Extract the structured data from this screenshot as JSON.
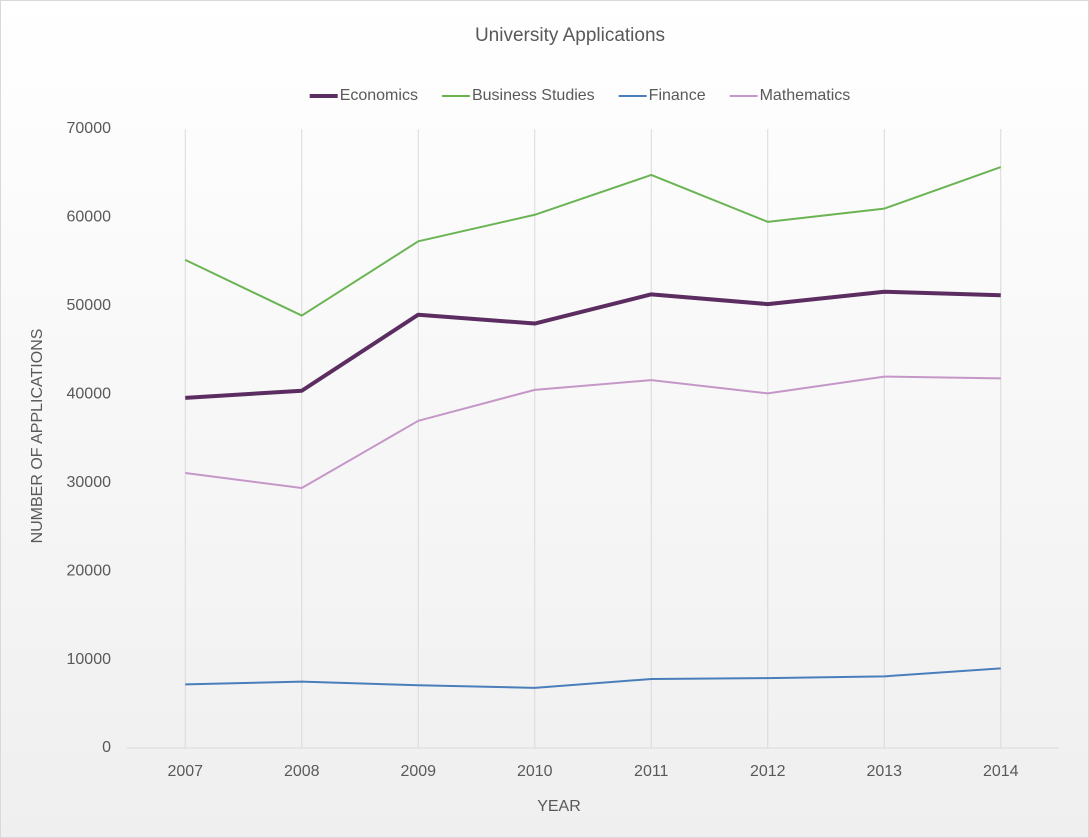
{
  "chart_data": {
    "type": "line",
    "title": "University Applications",
    "x_label": "YEAR",
    "y_label": "NUMBER OF APPLICATIONS",
    "categories": [
      "2007",
      "2008",
      "2009",
      "2010",
      "2011",
      "2012",
      "2013",
      "2014"
    ],
    "series": [
      {
        "name": "Economics",
        "color": "#5c2d61",
        "width": 4,
        "values": [
          39600,
          40400,
          49000,
          48000,
          51300,
          50200,
          51600,
          51200
        ]
      },
      {
        "name": "Business Studies",
        "color": "#6bb454",
        "width": 2,
        "values": [
          55200,
          48900,
          57300,
          60300,
          64800,
          59500,
          61000,
          65700
        ]
      },
      {
        "name": "Finance",
        "color": "#4a7ebb",
        "width": 2,
        "values": [
          7200,
          7500,
          7100,
          6800,
          7800,
          7900,
          8100,
          9000
        ]
      },
      {
        "name": "Mathematics",
        "color": "#c597c8",
        "width": 2,
        "values": [
          31100,
          29400,
          37000,
          40500,
          41600,
          40100,
          42000,
          41800
        ]
      }
    ],
    "ylim": [
      0,
      70000
    ],
    "yticks": [
      0,
      10000,
      20000,
      30000,
      40000,
      50000,
      60000,
      70000
    ],
    "legend": "top",
    "grid": "vertical"
  }
}
